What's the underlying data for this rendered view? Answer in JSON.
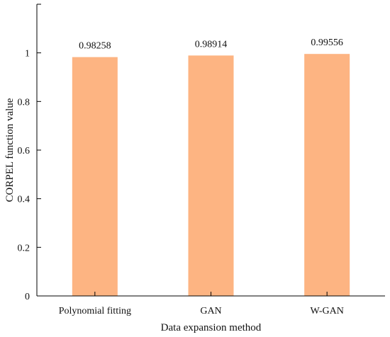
{
  "chart_data": {
    "type": "bar",
    "title": "",
    "categories": [
      "Polynomial fitting",
      "GAN",
      "W-GAN"
    ],
    "values": [
      0.98258,
      0.98914,
      0.99556
    ],
    "data_labels": [
      "0.98258",
      "0.98914",
      "0.99556"
    ],
    "xlabel": "Data expansion method",
    "ylabel": "CORPEL function value",
    "ylim": [
      0,
      1.2
    ],
    "yticks": [
      0,
      0.2,
      0.4,
      0.6,
      0.8,
      1
    ],
    "ytick_labels": [
      "0",
      "0.2",
      "0.4",
      "0.6",
      "0.8",
      "1"
    ],
    "grid": false,
    "legend": "none",
    "bar_color": "#FDB482",
    "axis_color": "#000000"
  }
}
